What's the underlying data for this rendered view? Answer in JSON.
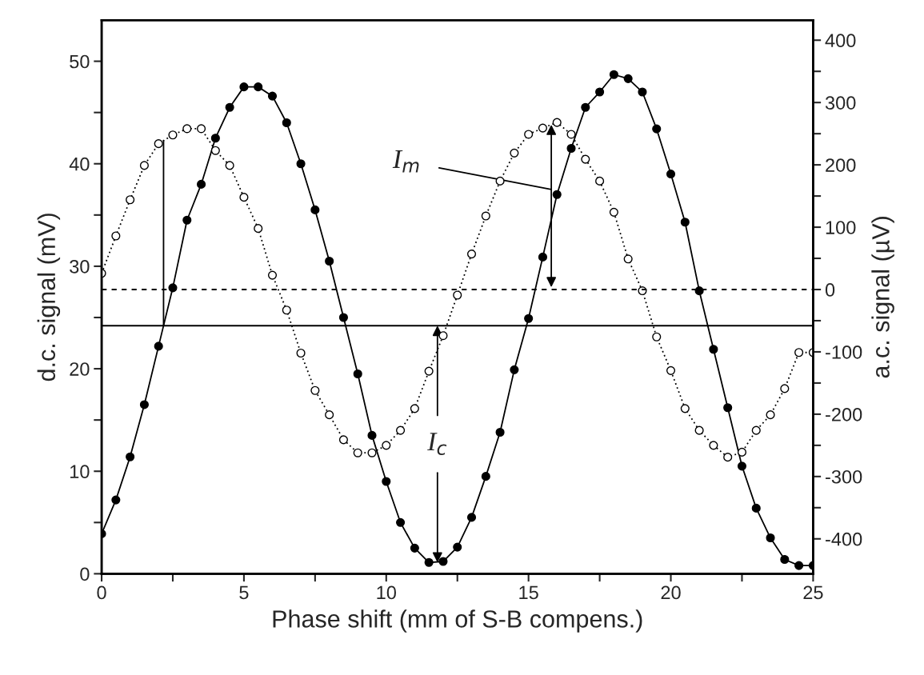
{
  "chart_data": {
    "type": "line",
    "xlabel": "Phase shift (mm of S-B compens.)",
    "ylabel": "d.c. signal (mV)",
    "y2label": "a.c. signal (µV)",
    "x": [
      0,
      0.5,
      1,
      1.5,
      2,
      2.5,
      3,
      3.5,
      4,
      4.5,
      5,
      5.5,
      6,
      6.5,
      7,
      7.5,
      8,
      8.5,
      9,
      9.5,
      10,
      10.5,
      11,
      11.5,
      12,
      12.5,
      13,
      13.5,
      14,
      14.5,
      15,
      15.5,
      16,
      16.5,
      17,
      17.5,
      18,
      18.5,
      19,
      19.5,
      20,
      20.5,
      21,
      21.5,
      22,
      22.5,
      23,
      23.5,
      24,
      24.5,
      25
    ],
    "series": [
      {
        "color": "#000000",
        "marker": "circle",
        "line_style": "solid",
        "values": [
          3.9,
          7.2,
          11.4,
          16.5,
          22.2,
          27.9,
          34.5,
          38.0,
          42.5,
          45.5,
          47.5,
          47.5,
          46.6,
          44.0,
          40.0,
          35.5,
          30.5,
          25.0,
          19.5,
          13.5,
          9.0,
          5.0,
          2.5,
          1.1,
          1.2,
          2.6,
          5.5,
          9.5,
          13.8,
          19.9,
          24.9,
          30.9,
          37.0,
          41.5,
          45.5,
          47.0,
          48.7,
          48.3,
          47.0,
          43.4,
          39.0,
          34.3,
          27.6,
          21.9,
          16.2,
          10.5,
          6.4,
          3.5,
          1.4,
          0.8,
          0.8
        ]
      },
      {
        "color": "#000000",
        "marker": "circle",
        "line_style": "dotted",
        "axis": "y2",
        "values": [
          26,
          86,
          144,
          199,
          234,
          248,
          258,
          258,
          223,
          199,
          148,
          98,
          23,
          -33,
          -102,
          -162,
          -201,
          -241,
          -262,
          -262,
          -250,
          -226,
          -191,
          -131,
          -74,
          -9,
          57,
          118,
          174,
          219,
          249,
          259,
          268,
          249,
          209,
          174,
          124,
          49,
          -2,
          -76,
          -130,
          -191,
          -226,
          -250,
          -269,
          -261,
          -226,
          -201,
          -159,
          -101,
          -101
        ]
      }
    ],
    "xlim": [
      0,
      25
    ],
    "xticks": [
      0,
      {
        "value": 2.5,
        "label": null
      },
      5,
      {
        "value": 7.5,
        "label": null
      },
      10,
      {
        "value": 12.5,
        "label": null
      },
      15,
      {
        "value": 17.5,
        "label": null
      },
      20,
      {
        "value": 22.5,
        "label": null
      },
      25
    ],
    "ylim": [
      0,
      54
    ],
    "yticks": [
      0,
      {
        "value": 5,
        "label": null
      },
      10,
      {
        "value": 15,
        "label": null
      },
      20,
      {
        "value": 25,
        "label": null
      },
      30,
      {
        "value": 35,
        "label": null
      },
      40,
      {
        "value": 45,
        "label": null
      },
      50
    ],
    "y2lim": [
      -456,
      432
    ],
    "y2ticks": [
      -400,
      {
        "value": -350,
        "label": null
      },
      -300,
      {
        "value": -250,
        "label": null
      },
      -200,
      {
        "value": -150,
        "label": null
      },
      -100,
      {
        "value": -50,
        "label": null
      },
      0,
      {
        "value": 50,
        "label": null
      },
      100,
      {
        "value": 150,
        "label": null
      },
      200,
      {
        "value": 250,
        "label": null
      },
      300,
      {
        "value": 350,
        "label": null
      },
      400
    ],
    "ref_lines": [
      {
        "axis": "y",
        "value": 24.2,
        "line_style": "solid",
        "color": "#000000"
      },
      {
        "axis": "y2",
        "value": 0,
        "line_style": "dashed",
        "color": "#000000"
      }
    ],
    "annotations": [
      {
        "text": "I$_{m}$",
        "x": 15.8,
        "y": 37.5
      },
      {
        "text": "I$_{c}$",
        "x": 11.8,
        "y": 1.1
      }
    ],
    "grid": false,
    "legend": false
  }
}
